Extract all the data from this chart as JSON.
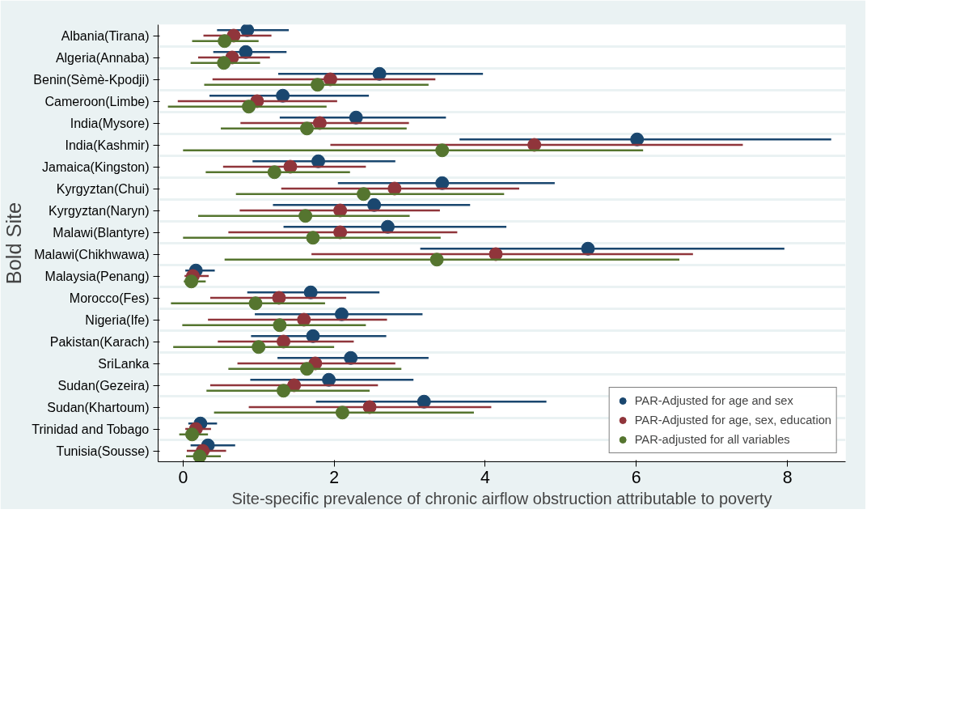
{
  "chart_data": {
    "type": "scatter",
    "orientation": "horizontal",
    "xlabel": "Site-specific prevalence of chronic airflow obstruction attributable to poverty",
    "ylabel": "Bold Site",
    "categories": [
      "Albania(Tirana)",
      "Algeria(Annaba)",
      "Benin(Sèmè-Kpodji)",
      "Cameroon(Limbe)",
      "India(Mysore)",
      "India(Kashmir)",
      "Jamaica(Kingston)",
      "Kyrgyztan(Chui)",
      "Kyrgyztan(Naryn)",
      "Malawi(Blantyre)",
      "Malawi(Chikhwawa)",
      "Malaysia(Penang)",
      "Morocco(Fes)",
      "Nigeria(Ife)",
      "Pakistan(Karach)",
      "SriLanka",
      "Sudan(Gezeira)",
      "Sudan(Khartoum)",
      "Trinidad and Tobago",
      "Tunisia(Sousse)"
    ],
    "xlim": [
      -0.33,
      8.77
    ],
    "xticks": [
      0,
      2,
      4,
      6,
      8
    ],
    "grid": "y",
    "legend": "bottom right",
    "marker": "circle",
    "series": [
      {
        "name": "PAR-Adjusted for age and sex",
        "color": "#1a476f",
        "values": [
          0.85,
          0.83,
          2.6,
          1.32,
          2.29,
          6.01,
          1.79,
          3.43,
          2.53,
          2.71,
          5.36,
          0.17,
          1.69,
          2.1,
          1.72,
          2.22,
          1.93,
          3.19,
          0.23,
          0.33
        ],
        "errors": [
          [
            0.45,
            1.4
          ],
          [
            0.4,
            1.37
          ],
          [
            1.26,
            3.97
          ],
          [
            0.35,
            2.46
          ],
          [
            1.28,
            3.48
          ],
          [
            3.66,
            8.58
          ],
          [
            0.92,
            2.81
          ],
          [
            2.05,
            4.92
          ],
          [
            1.19,
            3.8
          ],
          [
            1.33,
            4.28
          ],
          [
            3.14,
            7.96
          ],
          [
            0.03,
            0.42
          ],
          [
            0.85,
            2.6
          ],
          [
            0.95,
            3.17
          ],
          [
            0.9,
            2.69
          ],
          [
            1.25,
            3.25
          ],
          [
            0.89,
            3.05
          ],
          [
            1.76,
            4.81
          ],
          [
            0.07,
            0.45
          ],
          [
            0.1,
            0.69
          ]
        ]
      },
      {
        "name": "PAR-Adjusted for age, sex, education",
        "color": "#90353b",
        "values": [
          0.67,
          0.65,
          1.95,
          0.98,
          1.81,
          4.65,
          1.42,
          2.8,
          2.08,
          2.08,
          4.14,
          0.13,
          1.27,
          1.6,
          1.33,
          1.75,
          1.47,
          2.47,
          0.17,
          0.26
        ],
        "errors": [
          [
            0.27,
            1.17
          ],
          [
            0.2,
            1.15
          ],
          [
            0.39,
            3.34
          ],
          [
            -0.07,
            2.04
          ],
          [
            0.76,
            2.99
          ],
          [
            1.95,
            7.41
          ],
          [
            0.53,
            2.42
          ],
          [
            1.3,
            4.45
          ],
          [
            0.75,
            3.4
          ],
          [
            0.6,
            3.63
          ],
          [
            1.7,
            6.75
          ],
          [
            0.02,
            0.34
          ],
          [
            0.36,
            2.16
          ],
          [
            0.33,
            2.7
          ],
          [
            0.46,
            2.26
          ],
          [
            0.72,
            2.81
          ],
          [
            0.36,
            2.58
          ],
          [
            0.87,
            4.08
          ],
          [
            0.03,
            0.37
          ],
          [
            0.05,
            0.57
          ]
        ]
      },
      {
        "name": "PAR-adjusted for all variables",
        "color": "#55752f",
        "values": [
          0.55,
          0.54,
          1.78,
          0.87,
          1.64,
          3.43,
          1.21,
          2.39,
          1.62,
          1.72,
          3.36,
          0.11,
          0.96,
          1.28,
          1.0,
          1.64,
          1.33,
          2.11,
          0.12,
          0.22
        ],
        "errors": [
          [
            0.12,
            1.0
          ],
          [
            0.1,
            1.02
          ],
          [
            0.28,
            3.25
          ],
          [
            -0.2,
            1.9
          ],
          [
            0.5,
            2.96
          ],
          [
            0.0,
            6.09
          ],
          [
            0.3,
            2.21
          ],
          [
            0.7,
            4.25
          ],
          [
            0.2,
            3.0
          ],
          [
            0.0,
            3.41
          ],
          [
            0.55,
            6.57
          ],
          [
            0.01,
            0.3
          ],
          [
            -0.16,
            1.88
          ],
          [
            -0.01,
            2.42
          ],
          [
            -0.13,
            2.0
          ],
          [
            0.6,
            2.89
          ],
          [
            0.31,
            2.47
          ],
          [
            0.41,
            3.85
          ],
          [
            -0.05,
            0.33
          ],
          [
            0.04,
            0.5
          ]
        ]
      }
    ]
  }
}
